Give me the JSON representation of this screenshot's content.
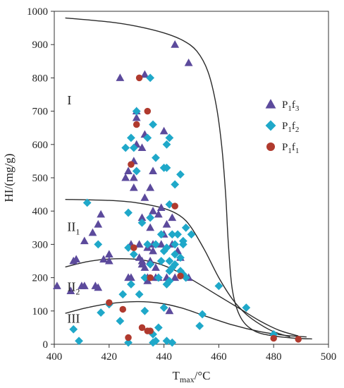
{
  "chart_data": {
    "type": "scatter",
    "xlabel_main": "T",
    "xlabel_sub": "max",
    "xlabel_unit": "/°C",
    "ylabel": "HI/(mg/g)",
    "xlim": [
      400,
      500
    ],
    "ylim": [
      0,
      1000
    ],
    "x_ticks": [
      400,
      420,
      440,
      460,
      480,
      500
    ],
    "y_ticks": [
      0,
      100,
      200,
      300,
      400,
      500,
      600,
      700,
      800,
      900,
      1000
    ],
    "grid": false,
    "legend_position": "right",
    "region_labels": [
      {
        "base": "I",
        "sub": "",
        "x": 406,
        "y": 720
      },
      {
        "base": "II",
        "sub": "1",
        "x": 406,
        "y": 340
      },
      {
        "base": "II",
        "sub": "2",
        "x": 406,
        "y": 160
      },
      {
        "base": "III",
        "sub": "",
        "x": 406,
        "y": 65
      }
    ],
    "boundaries": [
      {
        "name": "I/II",
        "points": [
          [
            404,
            980
          ],
          [
            420,
            968
          ],
          [
            430,
            955
          ],
          [
            440,
            935
          ],
          [
            447,
            912
          ],
          [
            452,
            880
          ],
          [
            456,
            820
          ],
          [
            459,
            720
          ],
          [
            461,
            600
          ],
          [
            462.5,
            450
          ],
          [
            463.5,
            300
          ],
          [
            465,
            160
          ],
          [
            468,
            80
          ],
          [
            473,
            40
          ],
          [
            480,
            25
          ],
          [
            488,
            18
          ],
          [
            494,
            16
          ]
        ]
      },
      {
        "name": "II1/II2",
        "points": [
          [
            404,
            435
          ],
          [
            420,
            432
          ],
          [
            430,
            425
          ],
          [
            440,
            408
          ],
          [
            446,
            385
          ],
          [
            450,
            350
          ],
          [
            455,
            280
          ],
          [
            460,
            200
          ],
          [
            465,
            135
          ],
          [
            470,
            90
          ],
          [
            475,
            60
          ],
          [
            480,
            38
          ],
          [
            486,
            22
          ]
        ]
      },
      {
        "name": "II2/III",
        "points": [
          [
            404,
            232
          ],
          [
            412,
            248
          ],
          [
            420,
            256
          ],
          [
            430,
            255
          ],
          [
            438,
            242
          ],
          [
            445,
            218
          ],
          [
            452,
            185
          ],
          [
            460,
            145
          ],
          [
            468,
            105
          ],
          [
            475,
            70
          ],
          [
            482,
            42
          ],
          [
            489,
            25
          ]
        ]
      },
      {
        "name": "III",
        "points": [
          [
            404,
            93
          ],
          [
            412,
            110
          ],
          [
            420,
            122
          ],
          [
            430,
            128
          ],
          [
            438,
            124
          ],
          [
            446,
            110
          ],
          [
            455,
            85
          ],
          [
            465,
            58
          ],
          [
            475,
            38
          ],
          [
            484,
            27
          ],
          [
            492,
            22
          ]
        ]
      }
    ],
    "series": [
      {
        "name_base": "P",
        "name_sub1": "1",
        "name_mid": "f",
        "name_sub2": "3",
        "marker": "triangle",
        "color": "#5c4a9c",
        "points": [
          [
            401,
            175
          ],
          [
            406,
            160
          ],
          [
            407,
            250
          ],
          [
            408,
            255
          ],
          [
            410,
            175
          ],
          [
            411,
            175
          ],
          [
            411,
            310
          ],
          [
            414,
            335
          ],
          [
            415,
            175
          ],
          [
            416,
            170
          ],
          [
            416,
            360
          ],
          [
            417,
            390
          ],
          [
            418,
            255
          ],
          [
            420,
            250
          ],
          [
            420,
            270
          ],
          [
            424,
            800
          ],
          [
            426,
            500
          ],
          [
            427,
            520
          ],
          [
            427,
            200
          ],
          [
            428,
            200
          ],
          [
            428,
            300
          ],
          [
            429,
            500
          ],
          [
            429,
            550
          ],
          [
            429,
            470
          ],
          [
            430,
            680
          ],
          [
            430,
            700
          ],
          [
            430,
            600
          ],
          [
            431,
            300
          ],
          [
            431,
            260
          ],
          [
            432,
            590
          ],
          [
            432,
            380
          ],
          [
            432,
            250
          ],
          [
            432,
            240
          ],
          [
            433,
            630
          ],
          [
            433,
            810
          ],
          [
            433,
            440
          ],
          [
            433,
            230
          ],
          [
            434,
            290
          ],
          [
            434,
            200
          ],
          [
            434,
            190
          ],
          [
            435,
            470
          ],
          [
            435,
            350
          ],
          [
            435,
            250
          ],
          [
            436,
            400
          ],
          [
            436,
            520
          ],
          [
            436,
            300
          ],
          [
            436,
            280
          ],
          [
            437,
            230
          ],
          [
            437,
            200
          ],
          [
            438,
            390
          ],
          [
            438,
            200
          ],
          [
            439,
            410
          ],
          [
            439,
            300
          ],
          [
            440,
            640
          ],
          [
            440,
            330
          ],
          [
            441,
            360
          ],
          [
            441,
            200
          ],
          [
            442,
            100
          ],
          [
            443,
            380
          ],
          [
            443,
            300
          ],
          [
            444,
            900
          ],
          [
            444,
            200
          ],
          [
            445,
            280
          ],
          [
            446,
            260
          ],
          [
            449,
            845
          ],
          [
            449,
            200
          ]
        ]
      },
      {
        "name_base": "P",
        "name_sub1": "1",
        "name_mid": "f",
        "name_sub2": "2",
        "marker": "diamond",
        "color": "#1fa8c9",
        "points": [
          [
            407,
            45
          ],
          [
            409,
            10
          ],
          [
            412,
            425
          ],
          [
            416,
            300
          ],
          [
            417,
            95
          ],
          [
            420,
            120
          ],
          [
            424,
            70
          ],
          [
            425,
            150
          ],
          [
            426,
            590
          ],
          [
            427,
            395
          ],
          [
            427,
            290
          ],
          [
            427,
            5
          ],
          [
            428,
            620
          ],
          [
            428,
            180
          ],
          [
            429,
            590
          ],
          [
            429,
            270
          ],
          [
            430,
            700
          ],
          [
            430,
            520
          ],
          [
            431,
            150
          ],
          [
            432,
            365
          ],
          [
            433,
            200
          ],
          [
            433,
            100
          ],
          [
            434,
            620
          ],
          [
            434,
            300
          ],
          [
            435,
            800
          ],
          [
            435,
            380
          ],
          [
            435,
            240
          ],
          [
            436,
            660
          ],
          [
            436,
            30
          ],
          [
            436,
            5
          ],
          [
            437,
            560
          ],
          [
            437,
            300
          ],
          [
            437,
            10
          ],
          [
            438,
            200
          ],
          [
            438,
            50
          ],
          [
            439,
            330
          ],
          [
            439,
            250
          ],
          [
            440,
            530
          ],
          [
            440,
            280
          ],
          [
            440,
            110
          ],
          [
            441,
            600
          ],
          [
            441,
            530
          ],
          [
            441,
            290
          ],
          [
            441,
            180
          ],
          [
            441,
            10
          ],
          [
            442,
            620
          ],
          [
            442,
            420
          ],
          [
            442,
            250
          ],
          [
            442,
            220
          ],
          [
            442,
            190
          ],
          [
            443,
            330
          ],
          [
            443,
            230
          ],
          [
            443,
            5
          ],
          [
            444,
            480
          ],
          [
            444,
            300
          ],
          [
            444,
            270
          ],
          [
            444,
            240
          ],
          [
            445,
            330
          ],
          [
            446,
            510
          ],
          [
            446,
            260
          ],
          [
            446,
            220
          ],
          [
            447,
            310
          ],
          [
            447,
            300
          ],
          [
            447,
            210
          ],
          [
            448,
            350
          ],
          [
            448,
            200
          ],
          [
            450,
            330
          ],
          [
            453,
            55
          ],
          [
            454,
            90
          ],
          [
            460,
            175
          ],
          [
            470,
            110
          ],
          [
            480,
            30
          ]
        ]
      },
      {
        "name_base": "P",
        "name_sub1": "1",
        "name_mid": "f",
        "name_sub2": "1",
        "marker": "circle",
        "color": "#b03a2e",
        "points": [
          [
            420,
            125
          ],
          [
            425,
            105
          ],
          [
            427,
            20
          ],
          [
            428,
            540
          ],
          [
            429,
            290
          ],
          [
            430,
            660
          ],
          [
            431,
            800
          ],
          [
            432,
            50
          ],
          [
            434,
            40
          ],
          [
            434,
            700
          ],
          [
            435,
            40
          ],
          [
            435,
            200
          ],
          [
            444,
            415
          ],
          [
            446,
            205
          ],
          [
            480,
            18
          ],
          [
            489,
            15
          ]
        ]
      }
    ]
  }
}
